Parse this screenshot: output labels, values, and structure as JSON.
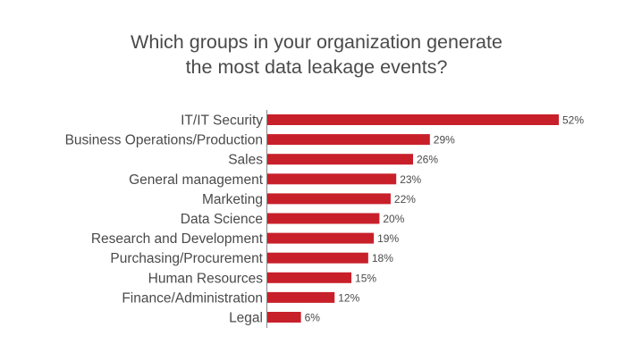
{
  "chart_data": {
    "type": "bar",
    "orientation": "horizontal",
    "title_lines": [
      "Which groups in your organization generate",
      "the most data leakage events?"
    ],
    "categories": [
      "IT/IT Security",
      "Business Operations/Production",
      "Sales",
      "General management",
      "Marketing",
      "Data Science",
      "Research and Development",
      "Purchasing/Procurement",
      "Human Resources",
      "Finance/Administration",
      "Legal"
    ],
    "values": [
      52,
      29,
      26,
      23,
      22,
      20,
      19,
      18,
      15,
      12,
      6
    ],
    "value_labels": [
      "52%",
      "29%",
      "26%",
      "23%",
      "22%",
      "20%",
      "19%",
      "18%",
      "15%",
      "12%",
      "6%"
    ],
    "unit": "%",
    "xlim": [
      0,
      52
    ],
    "grid": false,
    "legend": "none",
    "bar_color": "#c8202a",
    "axis_color": "#888888"
  }
}
